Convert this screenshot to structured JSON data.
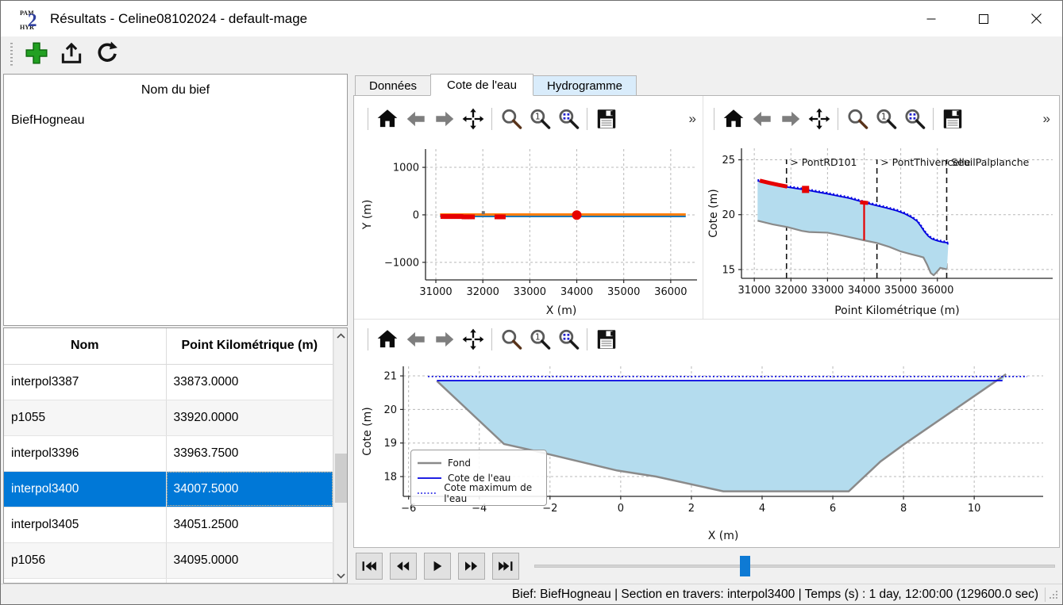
{
  "window": {
    "title": "Résultats - Celine08102024 - default-mage",
    "app_icon": "pamhyr2-logo",
    "controls": [
      "minimize",
      "maximize",
      "close"
    ]
  },
  "main_toolbar": {
    "buttons": [
      {
        "name": "add",
        "icon": "plus-icon"
      },
      {
        "name": "export",
        "icon": "export-icon"
      },
      {
        "name": "refresh",
        "icon": "refresh-icon"
      }
    ]
  },
  "bief_panel": {
    "header": "Nom du bief",
    "items": [
      "BiefHogneau"
    ]
  },
  "sections_table": {
    "columns": [
      "Nom",
      "Point Kilométrique (m)"
    ],
    "rows": [
      {
        "nom": "interpol3387",
        "pk": "33873.0000"
      },
      {
        "nom": "p1055",
        "pk": "33920.0000"
      },
      {
        "nom": "interpol3396",
        "pk": "33963.7500"
      },
      {
        "nom": "interpol3400",
        "pk": "34007.5000"
      },
      {
        "nom": "interpol3405",
        "pk": "34051.2500"
      },
      {
        "nom": "p1056",
        "pk": "34095.0000"
      }
    ],
    "selected_row": 3
  },
  "tabs": [
    {
      "label": "Données",
      "state": "normal"
    },
    {
      "label": "Cote de l'eau",
      "state": "active"
    },
    {
      "label": "Hydrogramme",
      "state": "highlight"
    }
  ],
  "mpl_toolbar": {
    "icons": [
      "home",
      "back",
      "forward",
      "pan",
      "zoom",
      "zoom-one",
      "zoom-rect",
      "save"
    ],
    "zoom_one_label": "1",
    "overflow_label": "»"
  },
  "player": {
    "buttons": [
      "skip-start",
      "rewind",
      "play",
      "fast-forward",
      "skip-end"
    ],
    "slider_pct": 39.5
  },
  "status_bar": {
    "text": "Bief: BiefHogneau | Section en travers: interpol3400 | Temps (s) : 1 day, 12:00:00 (129600.0 sec)"
  },
  "colors": {
    "selection": "#0078d7",
    "tab_highlight": "#d9ecfb",
    "water_blue": "#0000e0",
    "fill_blue": "#b4dcee",
    "fond_gray": "#8a8a8a",
    "marker_red": "#e60000",
    "mpl_orange": "#ff7f0e",
    "mpl_blue": "#1f77b4"
  },
  "chart_data": [
    {
      "id": "plan-view",
      "type": "line",
      "title": "",
      "xlabel": "X (m)",
      "ylabel": "Y (m)",
      "xlim": [
        30780,
        36560
      ],
      "ylim": [
        -1370,
        1385
      ],
      "xticks": [
        31000,
        32000,
        33000,
        34000,
        35000,
        36000
      ],
      "yticks": [
        -1000,
        0,
        1000
      ],
      "grid": true,
      "series": [
        {
          "name": "Axe rivière aval",
          "type": "line",
          "color": "#1f77b4",
          "width": 2.5,
          "pts": [
            [
              31090,
              -30
            ],
            [
              36320,
              -30
            ]
          ]
        },
        {
          "name": "Axe rivière",
          "type": "line",
          "color": "#ff7f0e",
          "width": 3,
          "pts": [
            [
              31090,
              8
            ],
            [
              36320,
              8
            ]
          ]
        },
        {
          "name": "Sections marquées",
          "type": "scatter",
          "color": "#e60000",
          "marker": "square",
          "size": 3,
          "pts": [
            [
              31150,
              -35
            ],
            [
              31185,
              -35
            ],
            [
              31220,
              -35
            ],
            [
              31255,
              -35
            ],
            [
              31290,
              -35
            ],
            [
              31325,
              -35
            ],
            [
              31360,
              -35
            ],
            [
              31395,
              -35
            ],
            [
              31430,
              -35
            ],
            [
              31465,
              -35
            ],
            [
              31500,
              -35
            ],
            [
              31535,
              -35
            ],
            [
              31600,
              -42
            ],
            [
              31660,
              -42
            ],
            [
              31720,
              -42
            ],
            [
              31780,
              -42
            ],
            [
              32300,
              -42
            ],
            [
              32345,
              -42
            ],
            [
              32390,
              -42
            ],
            [
              32435,
              -42
            ]
          ]
        },
        {
          "name": "Section courante",
          "type": "scatter",
          "color": "#e60000",
          "marker": "circle",
          "size": 6,
          "pts": [
            [
              34000,
              -5
            ]
          ]
        },
        {
          "name": "Repère",
          "type": "scatter",
          "color": "#707070",
          "marker": "square",
          "size": 2,
          "pts": [
            [
              32010,
              45
            ]
          ]
        }
      ]
    },
    {
      "id": "profil-en-long",
      "type": "area",
      "xlabel": "Point Kilométrique (m)",
      "ylabel": "Cote (m)",
      "xlim": [
        30650,
        39150
      ],
      "ylim": [
        14.2,
        26.05
      ],
      "xticks": [
        31000,
        32000,
        33000,
        34000,
        35000,
        36000
      ],
      "yticks": [
        15,
        20,
        25
      ],
      "grid": true,
      "series": [
        {
          "name": "Eau",
          "type": "fill_between",
          "between": [
            "Surface libre",
            "Fond"
          ],
          "color": "#b4dcee"
        },
        {
          "name": "Fond",
          "type": "line",
          "color": "#8a8a8a",
          "width": 2.2,
          "pts": [
            [
              31090,
              19.45
            ],
            [
              31500,
              19.12
            ],
            [
              31900,
              18.87
            ],
            [
              32300,
              18.52
            ],
            [
              32500,
              18.42
            ],
            [
              33000,
              18.36
            ],
            [
              33400,
              18.1
            ],
            [
              34000,
              17.66
            ],
            [
              34350,
              17.42
            ],
            [
              34700,
              17.05
            ],
            [
              35000,
              16.65
            ],
            [
              35300,
              16.38
            ],
            [
              35500,
              16.22
            ],
            [
              35620,
              16.1
            ],
            [
              35720,
              15.45
            ],
            [
              35820,
              14.68
            ],
            [
              35900,
              14.48
            ],
            [
              35990,
              14.8
            ],
            [
              36080,
              15.15
            ],
            [
              36180,
              15.08
            ],
            [
              36260,
              15.02
            ]
          ]
        },
        {
          "name": "Surface libre",
          "type": "line",
          "color": "#0000e0",
          "width": 1.8,
          "pts": [
            [
              31090,
              23.08
            ],
            [
              31300,
              22.95
            ],
            [
              31600,
              22.72
            ],
            [
              31900,
              22.52
            ],
            [
              32200,
              22.36
            ],
            [
              32400,
              22.27
            ],
            [
              32700,
              22.08
            ],
            [
              33000,
              21.9
            ],
            [
              33300,
              21.7
            ],
            [
              33600,
              21.5
            ],
            [
              33900,
              21.22
            ],
            [
              34000,
              21.12
            ],
            [
              34200,
              20.95
            ],
            [
              34350,
              20.82
            ],
            [
              34600,
              20.62
            ],
            [
              34900,
              20.35
            ],
            [
              35100,
              20.1
            ],
            [
              35300,
              19.75
            ],
            [
              35450,
              19.4
            ],
            [
              35550,
              18.95
            ],
            [
              35650,
              18.45
            ],
            [
              35750,
              18.05
            ],
            [
              35850,
              17.8
            ],
            [
              36000,
              17.62
            ],
            [
              36150,
              17.5
            ],
            [
              36260,
              17.45
            ],
            [
              36300,
              17.3
            ]
          ]
        },
        {
          "name": "Cote maximum",
          "type": "line",
          "color": "#0000e0",
          "width": 1.8,
          "dash": "1.8 2.8",
          "derive": {
            "from": "Surface libre",
            "dy": 0.1
          }
        },
        {
          "name": "Sections rouges amont",
          "type": "line",
          "color": "#e60000",
          "width": 5,
          "pts": [
            [
              31150,
              23.1
            ],
            [
              31400,
              22.9
            ],
            [
              31650,
              22.72
            ],
            [
              31900,
              22.56
            ]
          ]
        },
        {
          "name": "Section rouge 32400",
          "type": "scatter",
          "color": "#e60000",
          "marker": "square",
          "size": 4.5,
          "pts": [
            [
              32400,
              22.3
            ]
          ]
        },
        {
          "name": "Section courante ligne",
          "type": "line",
          "color": "#e60000",
          "width": 2.2,
          "pts": [
            [
              34000,
              21.08
            ],
            [
              34000,
              17.68
            ]
          ]
        },
        {
          "name": "Section courante tête",
          "type": "line",
          "color": "#e60000",
          "width": 5,
          "pts": [
            [
              33890,
              21.14
            ],
            [
              34110,
              21.06
            ]
          ]
        }
      ],
      "vlines": [
        {
          "x": 31880
        },
        {
          "x": 34350
        },
        {
          "x": 36255
        }
      ],
      "annotations": [
        {
          "x": 31980,
          "y": 24.45,
          "text": "> PontRD101"
        },
        {
          "x": 34450,
          "y": 24.45,
          "text": "> PontThivencelle"
        },
        {
          "x": 36380,
          "y": 24.45,
          "text": "SeuilPalplanche"
        }
      ]
    },
    {
      "id": "section-en-travers",
      "type": "area",
      "xlabel": "X (m)",
      "ylabel": "Cote (m)",
      "xlim": [
        -6.15,
        11.95
      ],
      "ylim": [
        17.41,
        21.285
      ],
      "xticks": [
        -6,
        -4,
        -2,
        0,
        2,
        4,
        6,
        8,
        10
      ],
      "yticks": [
        18,
        19,
        20,
        21
      ],
      "grid": true,
      "legend": {
        "position": "left",
        "entries": [
          {
            "label": "Fond",
            "style": "solid",
            "color": "#8a8a8a",
            "width": 2.5
          },
          {
            "label": "Cote de l'eau",
            "style": "solid",
            "color": "#0000e0",
            "width": 1.8
          },
          {
            "label": "Cote maximum de l'eau",
            "style": "dotted",
            "color": "#0000e0",
            "width": 1.8
          }
        ]
      },
      "series": [
        {
          "name": "Eau",
          "type": "fill_between",
          "between": [
            "Cote de l'eau",
            "Fond"
          ],
          "color": "#b4dcee"
        },
        {
          "name": "Fond",
          "type": "line",
          "color": "#8a8a8a",
          "width": 2.5,
          "pts": [
            [
              -5.2,
              20.85
            ],
            [
              -3.3,
              18.97
            ],
            [
              -2.45,
              18.77
            ],
            [
              -0.1,
              18.18
            ],
            [
              1.0,
              18.0
            ],
            [
              2.9,
              17.56
            ],
            [
              6.45,
              17.56
            ],
            [
              7.35,
              18.45
            ],
            [
              8.0,
              18.95
            ],
            [
              10.9,
              21.05
            ]
          ]
        },
        {
          "name": "Cote de l'eau",
          "type": "line",
          "color": "#0000e0",
          "width": 1.8,
          "pts": [
            [
              -5.2,
              20.86
            ],
            [
              10.8,
              20.86
            ]
          ]
        },
        {
          "name": "Cote maximum de l'eau",
          "type": "line",
          "color": "#0000e0",
          "width": 1.8,
          "dash": "1.8 2.8",
          "pts": [
            [
              -5.45,
              20.98
            ],
            [
              11.5,
              20.98
            ]
          ]
        }
      ]
    }
  ]
}
